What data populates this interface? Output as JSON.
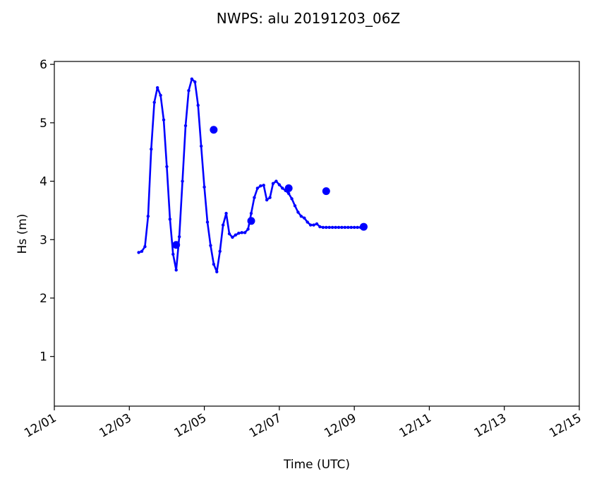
{
  "chart_data": {
    "type": "line",
    "title": "NWPS: alu 20191203_06Z",
    "xlabel": "Time (UTC)",
    "ylabel": "Hs (m)",
    "xlim": [
      "2019-12-01T00:00",
      "2019-12-15T00:00"
    ],
    "ylim": [
      0.15,
      6.05
    ],
    "x_ticks": [
      {
        "value": "2019-12-01T00:00",
        "label": "12/01"
      },
      {
        "value": "2019-12-03T00:00",
        "label": "12/03"
      },
      {
        "value": "2019-12-05T00:00",
        "label": "12/05"
      },
      {
        "value": "2019-12-07T00:00",
        "label": "12/07"
      },
      {
        "value": "2019-12-09T00:00",
        "label": "12/09"
      },
      {
        "value": "2019-12-11T00:00",
        "label": "12/11"
      },
      {
        "value": "2019-12-13T00:00",
        "label": "12/13"
      },
      {
        "value": "2019-12-15T00:00",
        "label": "12/15"
      }
    ],
    "y_ticks": [
      {
        "value": 1,
        "label": "1"
      },
      {
        "value": 2,
        "label": "2"
      },
      {
        "value": 3,
        "label": "3"
      },
      {
        "value": 4,
        "label": "4"
      },
      {
        "value": 5,
        "label": "5"
      },
      {
        "value": 6,
        "label": "6"
      }
    ],
    "grid": false,
    "series": [
      {
        "color": "#0000ff",
        "x": [
          "2019-12-03T06:00",
          "2019-12-03T08:00",
          "2019-12-03T10:00",
          "2019-12-03T12:00",
          "2019-12-03T14:00",
          "2019-12-03T16:00",
          "2019-12-03T18:00",
          "2019-12-03T20:00",
          "2019-12-03T22:00",
          "2019-12-04T00:00",
          "2019-12-04T02:00",
          "2019-12-04T04:00",
          "2019-12-04T06:00",
          "2019-12-04T08:00",
          "2019-12-04T10:00",
          "2019-12-04T12:00",
          "2019-12-04T14:00",
          "2019-12-04T16:00",
          "2019-12-04T18:00",
          "2019-12-04T20:00",
          "2019-12-04T22:00",
          "2019-12-05T00:00",
          "2019-12-05T02:00",
          "2019-12-05T04:00",
          "2019-12-05T06:00",
          "2019-12-05T08:00",
          "2019-12-05T10:00",
          "2019-12-05T12:00",
          "2019-12-05T14:00",
          "2019-12-05T16:00",
          "2019-12-05T18:00",
          "2019-12-05T20:00",
          "2019-12-05T22:00",
          "2019-12-06T00:00",
          "2019-12-06T02:00",
          "2019-12-06T04:00",
          "2019-12-06T06:00",
          "2019-12-06T08:00",
          "2019-12-06T10:00",
          "2019-12-06T12:00",
          "2019-12-06T14:00",
          "2019-12-06T16:00",
          "2019-12-06T18:00",
          "2019-12-06T20:00",
          "2019-12-06T22:00",
          "2019-12-07T00:00",
          "2019-12-07T02:00",
          "2019-12-07T04:00",
          "2019-12-07T06:00",
          "2019-12-07T08:00",
          "2019-12-07T10:00",
          "2019-12-07T12:00",
          "2019-12-07T14:00",
          "2019-12-07T16:00",
          "2019-12-07T18:00",
          "2019-12-07T20:00",
          "2019-12-07T22:00",
          "2019-12-08T00:00",
          "2019-12-08T02:00",
          "2019-12-08T04:00",
          "2019-12-08T06:00",
          "2019-12-08T08:00",
          "2019-12-08T10:00",
          "2019-12-08T12:00",
          "2019-12-08T14:00",
          "2019-12-08T16:00",
          "2019-12-08T18:00",
          "2019-12-08T20:00",
          "2019-12-08T22:00",
          "2019-12-09T00:00",
          "2019-12-09T02:00",
          "2019-12-09T04:00",
          "2019-12-09T06:00"
        ],
        "y": [
          2.78,
          2.8,
          2.88,
          3.4,
          4.55,
          5.35,
          5.6,
          5.47,
          5.05,
          4.25,
          3.35,
          2.75,
          2.48,
          3.05,
          4.0,
          4.95,
          5.55,
          5.75,
          5.7,
          5.3,
          4.6,
          3.9,
          3.3,
          2.9,
          2.58,
          2.45,
          2.8,
          3.25,
          3.45,
          3.1,
          3.04,
          3.08,
          3.11,
          3.12,
          3.12,
          3.18,
          3.45,
          3.72,
          3.88,
          3.92,
          3.93,
          3.68,
          3.72,
          3.96,
          4.0,
          3.94,
          3.88,
          3.84,
          3.79,
          3.7,
          3.58,
          3.47,
          3.4,
          3.37,
          3.3,
          3.25,
          3.25,
          3.27,
          3.22,
          3.21,
          3.21,
          3.21,
          3.21,
          3.21,
          3.21,
          3.21,
          3.21,
          3.21,
          3.21,
          3.21,
          3.21,
          3.21,
          3.21
        ]
      }
    ],
    "highlighted_points": [
      {
        "x": "2019-12-04T06:00",
        "y": 2.91
      },
      {
        "x": "2019-12-05T06:00",
        "y": 4.88
      },
      {
        "x": "2019-12-06T06:00",
        "y": 3.32
      },
      {
        "x": "2019-12-07T06:00",
        "y": 3.88
      },
      {
        "x": "2019-12-08T06:00",
        "y": 3.83
      },
      {
        "x": "2019-12-09T06:00",
        "y": 3.22
      }
    ]
  }
}
